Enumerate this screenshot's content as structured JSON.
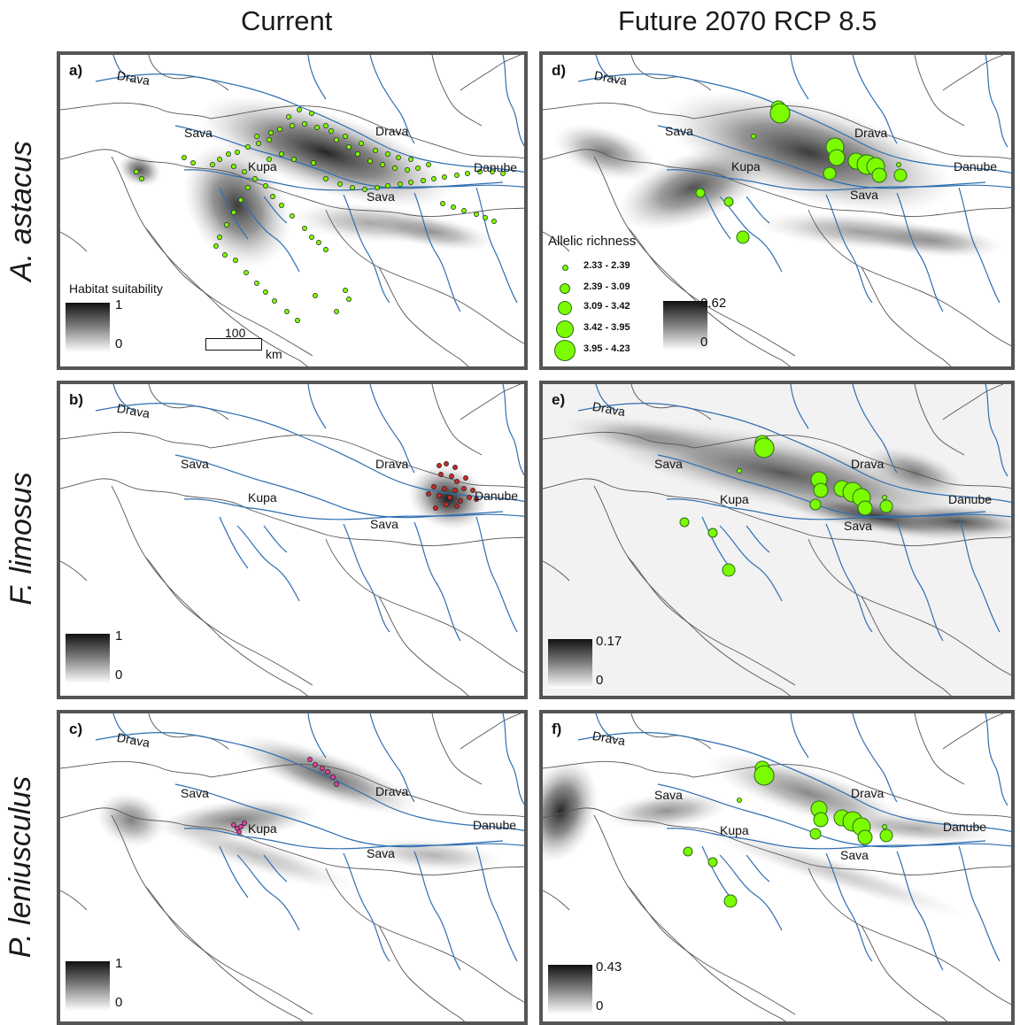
{
  "columns": {
    "current": "Current",
    "future": "Future 2070 RCP 8.5"
  },
  "rows": [
    "A. astacus",
    "F. limosus",
    "P. leniusculus"
  ],
  "panels": {
    "a": {
      "label": "a)",
      "legend_title": "Habitat suitability",
      "max": "1",
      "min": "0"
    },
    "b": {
      "label": "b)",
      "max": "1",
      "min": "0"
    },
    "c": {
      "label": "c)",
      "max": "1",
      "min": "0"
    },
    "d": {
      "label": "d)",
      "max": "0.62",
      "min": "0"
    },
    "e": {
      "label": "e)",
      "max": "0.17",
      "min": "0"
    },
    "f": {
      "label": "f)",
      "max": "0.43",
      "min": "0"
    }
  },
  "rivers": {
    "drava": "Drava",
    "sava": "Sava",
    "kupa": "Kupa",
    "danube": "Danube"
  },
  "scale_bar": {
    "value": "100",
    "unit": "km"
  },
  "allelic_richness": {
    "title": "Allelic richness",
    "classes": [
      "2.33 - 2.39",
      "2.39 - 3.09",
      "3.09 - 3.42",
      "3.42 - 3.95",
      "3.95 - 4.23"
    ]
  },
  "colors": {
    "astacus_points": "#7CFC00",
    "limosus_points": "#c62828",
    "leniusculus_points": "#e040a0",
    "rivers": "#2f6fb0",
    "border": "#555555"
  }
}
